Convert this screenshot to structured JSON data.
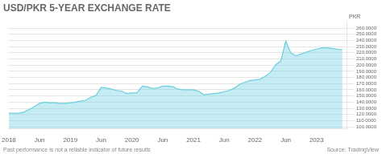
{
  "chart_data": {
    "type": "area",
    "title": "USD/PKR 5-YEAR EXCHANGE RATE",
    "ylabel": "PKR",
    "annotations": [
      "Past performance is not a reliable indicator of future results",
      "Source: TradingView"
    ],
    "color": "#6BCFDF",
    "grid": true,
    "xlim": [
      2018.0,
      2023.5
    ],
    "xticks": [
      2018,
      {
        "value": 2018.5,
        "label": "Jun"
      },
      2019,
      {
        "value": 2019.5,
        "label": "Jun"
      },
      2020,
      {
        "value": 2020.5,
        "label": "Jun"
      },
      2021,
      {
        "value": 2021.5,
        "label": "Jun"
      },
      2022,
      {
        "value": 2022.5,
        "label": "Jun"
      },
      2023
    ],
    "ylim": [
      97,
      270
    ],
    "yticks": [
      {
        "value": 100.0,
        "label": "100.0000"
      },
      {
        "value": 110.0,
        "label": "110.0000"
      },
      {
        "value": 120.0,
        "label": "120.0000"
      },
      {
        "value": 130.0,
        "label": "130.0000"
      },
      {
        "value": 140.0,
        "label": "140.0000"
      },
      {
        "value": 150.0,
        "label": "150.0000"
      },
      {
        "value": 160.0,
        "label": "160.0000"
      },
      {
        "value": 170.0,
        "label": "170.0000"
      },
      {
        "value": 180.0,
        "label": "180.0000"
      },
      {
        "value": 190.0,
        "label": "190.0000"
      },
      {
        "value": 200.0,
        "label": "200.0000"
      },
      {
        "value": 210.0,
        "label": "210.0000"
      },
      {
        "value": 220.0,
        "label": "220.0000"
      },
      {
        "value": 230.0,
        "label": "230.0000"
      },
      {
        "value": 240.0,
        "label": "240.0000"
      },
      {
        "value": 250.0,
        "label": "250.0000"
      },
      {
        "value": 260.0,
        "label": "260.0000"
      }
    ],
    "x": [
      2018.0,
      2018.08,
      2018.17,
      2018.25,
      2018.33,
      2018.42,
      2018.5,
      2018.58,
      2018.67,
      2018.75,
      2018.83,
      2018.92,
      2019.0,
      2019.08,
      2019.17,
      2019.25,
      2019.33,
      2019.42,
      2019.5,
      2019.58,
      2019.67,
      2019.75,
      2019.83,
      2019.92,
      2020.0,
      2020.08,
      2020.17,
      2020.25,
      2020.33,
      2020.42,
      2020.5,
      2020.58,
      2020.67,
      2020.75,
      2020.83,
      2020.92,
      2021.0,
      2021.08,
      2021.17,
      2021.25,
      2021.33,
      2021.42,
      2021.5,
      2021.58,
      2021.67,
      2021.75,
      2021.83,
      2021.92,
      2022.0,
      2022.08,
      2022.17,
      2022.25,
      2022.33,
      2022.42,
      2022.5,
      2022.58,
      2022.67,
      2022.75,
      2022.83,
      2022.92,
      2023.0,
      2023.08,
      2023.17,
      2023.25,
      2023.33,
      2023.42
    ],
    "values": [
      122,
      122,
      122,
      124,
      128,
      133,
      138,
      140,
      139,
      139,
      138,
      138,
      139,
      140,
      142,
      143,
      148,
      151,
      164,
      163,
      161,
      159,
      158,
      154,
      155,
      155,
      166,
      165,
      162,
      163,
      166,
      166,
      165,
      161,
      160,
      160,
      160,
      158,
      152,
      153,
      154,
      155,
      157,
      159,
      163,
      169,
      172,
      175,
      176,
      177,
      182,
      188,
      200,
      207,
      239,
      220,
      215,
      218,
      221,
      224,
      226,
      228,
      228,
      227,
      226,
      225
    ]
  }
}
